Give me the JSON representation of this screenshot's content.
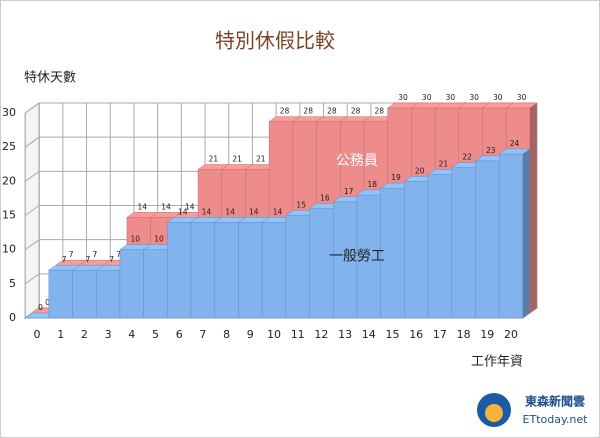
{
  "chart_data": {
    "type": "bar3d",
    "title": "特別休假比較",
    "y_label": "特休天數",
    "x_label": "工作年資",
    "categories": [
      "0",
      "1",
      "2",
      "3",
      "4",
      "5",
      "6",
      "7",
      "8",
      "9",
      "10",
      "11",
      "12",
      "13",
      "14",
      "15",
      "16",
      "17",
      "18",
      "19",
      "20"
    ],
    "series": [
      {
        "name": "公務員",
        "color": "#ee8c8c",
        "values": [
          0,
          7,
          7,
          7,
          14,
          14,
          14,
          21,
          21,
          21,
          28,
          28,
          28,
          28,
          28,
          30,
          30,
          30,
          30,
          30,
          30
        ]
      },
      {
        "name": "一般勞工",
        "color": "#82b3ec",
        "values": [
          0,
          7,
          7,
          7,
          10,
          10,
          14,
          14,
          14,
          14,
          14,
          15,
          16,
          17,
          18,
          19,
          20,
          21,
          22,
          23,
          24
        ]
      }
    ],
    "ylim": [
      0,
      30
    ],
    "yticks": [
      0,
      5,
      10,
      15,
      20,
      25,
      30
    ],
    "grid": true,
    "watermark": {
      "line1": "東森新聞雲",
      "line2": "ETtoday.net"
    }
  }
}
